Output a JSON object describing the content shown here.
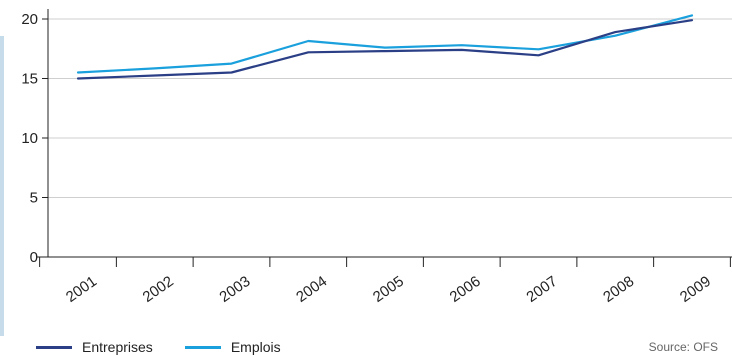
{
  "chart_data": {
    "type": "line",
    "x": [
      "2001",
      "2002",
      "2003",
      "2004",
      "2005",
      "2006",
      "2007",
      "2008",
      "2009"
    ],
    "series": [
      {
        "name": "Entreprises",
        "color": "#2b3f86",
        "values": [
          15.0,
          15.25,
          15.5,
          17.2,
          17.3,
          17.4,
          16.95,
          18.9,
          19.9
        ]
      },
      {
        "name": "Emplois",
        "color": "#1aa0dc",
        "values": [
          15.5,
          15.85,
          16.25,
          18.15,
          17.6,
          17.8,
          17.45,
          18.6,
          20.3
        ]
      }
    ],
    "ylim": [
      0,
      20
    ],
    "yticks": [
      0,
      5,
      10,
      15,
      20
    ],
    "ytick_labels": [
      "0",
      "5",
      "10",
      "15",
      "20"
    ],
    "grid": true,
    "legend_position": "bottom-left",
    "title": "",
    "xlabel": "",
    "ylabel": ""
  },
  "source": "Source: OFS"
}
